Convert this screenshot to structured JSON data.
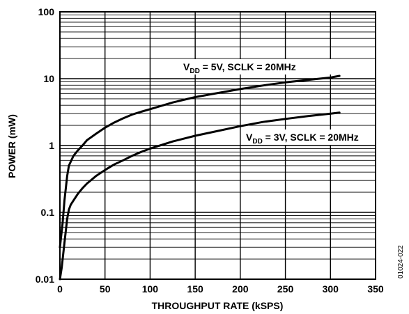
{
  "chart_data": {
    "type": "line",
    "title": "",
    "xlabel": "THROUGHPUT RATE (kSPS)",
    "ylabel": "POWER (mW)",
    "xlim": [
      0,
      350
    ],
    "ylim": [
      0.01,
      100
    ],
    "yscale": "log",
    "grid": true,
    "x_ticks": [
      0,
      50,
      100,
      150,
      200,
      250,
      300,
      350
    ],
    "x_tick_labels": [
      "0",
      "50",
      "100",
      "150",
      "200",
      "250",
      "300",
      "350"
    ],
    "y_ticks": [
      0.01,
      0.1,
      1,
      10,
      100
    ],
    "y_tick_labels": [
      "0.01",
      "0.1",
      "1",
      "10",
      "100"
    ],
    "series": [
      {
        "label_main": "V",
        "label_sub": "DD",
        "label_rest": " = 5V, SCLK = 20MHz",
        "x": [
          0,
          3,
          5,
          8,
          10,
          15,
          20,
          25,
          30,
          40,
          50,
          60,
          70,
          80,
          90,
          100,
          125,
          150,
          175,
          200,
          225,
          250,
          275,
          300,
          310
        ],
        "y": [
          0.03,
          0.07,
          0.15,
          0.35,
          0.5,
          0.7,
          0.85,
          1.0,
          1.2,
          1.5,
          1.85,
          2.2,
          2.55,
          2.9,
          3.2,
          3.5,
          4.4,
          5.3,
          6.1,
          7.0,
          7.9,
          8.8,
          9.6,
          10.4,
          11
        ]
      },
      {
        "label_main": "V",
        "label_sub": "DD",
        "label_rest": " = 3V, SCLK = 20MHz",
        "x": [
          0,
          2,
          5,
          8,
          10,
          12,
          15,
          20,
          25,
          30,
          40,
          50,
          60,
          70,
          80,
          90,
          100,
          125,
          150,
          175,
          200,
          225,
          250,
          275,
          300,
          310
        ],
        "y": [
          0.01,
          0.015,
          0.035,
          0.08,
          0.11,
          0.13,
          0.15,
          0.19,
          0.23,
          0.27,
          0.35,
          0.43,
          0.52,
          0.6,
          0.7,
          0.8,
          0.9,
          1.15,
          1.4,
          1.65,
          1.95,
          2.25,
          2.5,
          2.75,
          3.0,
          3.1
        ]
      }
    ],
    "annotation": "01024-022"
  }
}
